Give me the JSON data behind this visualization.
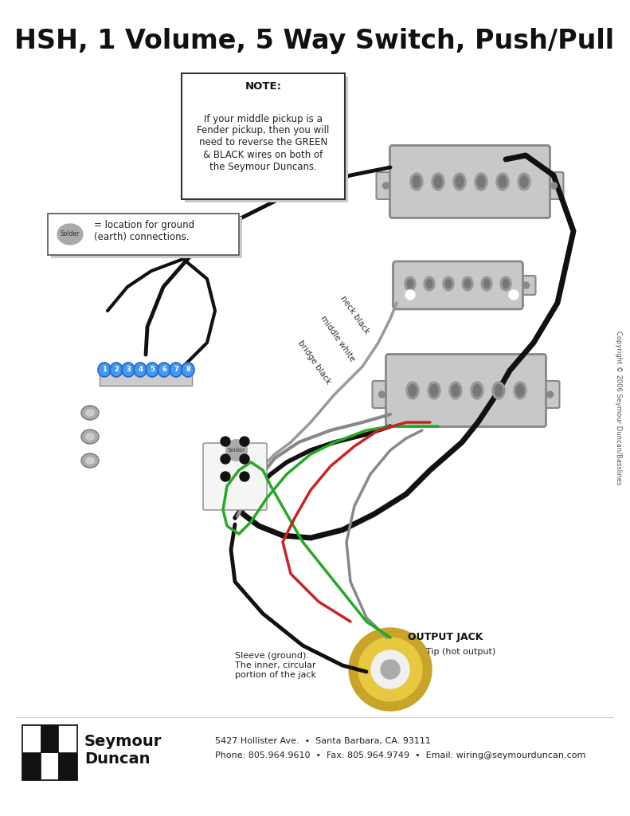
{
  "title": "HSH, 1 Volume, 5 Way Switch, Push/Pull",
  "title_fontsize": 24,
  "bg_color": "#ffffff",
  "note_title": "NOTE:",
  "note_body": "If your middle pickup is a\nFender pickup, then you will\nneed to reverse the GREEN\n& BLACK wires on both of\nthe Seymour Duncans.",
  "footer_line1": "5427 Hollister Ave.  •  Santa Barbara, CA. 93111",
  "footer_line2": "Phone: 805.964.9610  •  Fax: 805.964.9749  •  Email: wiring@seymourduncan.com",
  "copyright_text": "Copyright © 2006 Seymour Duncan/Basslines",
  "wire_labels": [
    "neck black",
    "middle white",
    "bridge black"
  ],
  "switch_numbers": [
    "1",
    "2",
    "3",
    "4",
    "5",
    "6",
    "7",
    "8"
  ],
  "output_jack_label": "OUTPUT JACK",
  "tip_label": "Tip (hot output)",
  "sleeve_label": "Sleeve (ground).\nThe inner, circular\nportion of the jack",
  "solder_label": "Solder",
  "ground_text": "= location for ground\n(earth) connections.",
  "pickup_color": "#c8c8c8",
  "pickup_edge": "#888888",
  "pole_color": "#888888",
  "wire_black": "#111111",
  "wire_white": "#e8e8e8",
  "wire_green": "#22aa22",
  "wire_red": "#cc2222",
  "switch_blue": "#4499ee",
  "jack_gold1": "#c8a428",
  "jack_gold2": "#e8c840",
  "jack_white": "#f0f0f0"
}
